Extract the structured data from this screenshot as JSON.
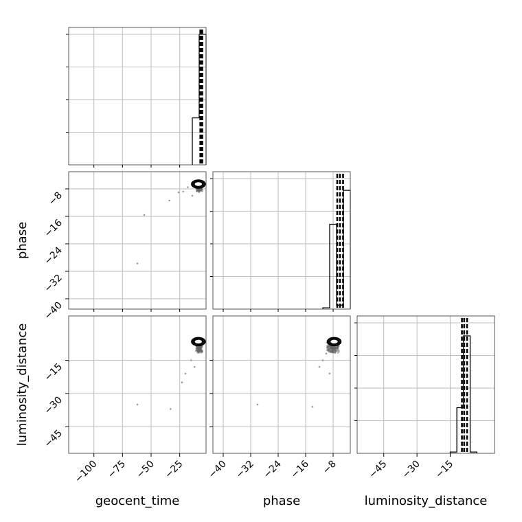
{
  "chart_data": {
    "type": "corner",
    "grid": true,
    "parameters": [
      "geocent_time",
      "phase",
      "luminosity_distance"
    ],
    "axis_labels": {
      "x": [
        "geocent_time",
        "phase",
        "luminosity_distance"
      ],
      "y": [
        "phase",
        "luminosity_distance"
      ]
    },
    "ranges": {
      "geocent_time": [
        -122,
        -2
      ],
      "phase": [
        -43,
        -3
      ],
      "luminosity_distance": [
        -57,
        5
      ]
    },
    "ticks": {
      "geocent_time": [
        -100,
        -75,
        -50,
        -25
      ],
      "phase": [
        -40,
        -32,
        -24,
        -16,
        -8
      ],
      "luminosity_distance": [
        -45,
        -30,
        -15
      ]
    },
    "tick_labels": {
      "geocent_time": [
        "−100",
        "−75",
        "−50",
        "−25"
      ],
      "phase": [
        "−40",
        "−32",
        "−24",
        "−16",
        "−8"
      ],
      "luminosity_distance": [
        "−45",
        "−30",
        "−15"
      ]
    },
    "histograms": {
      "geocent_time": {
        "bin_edges": [
          -14,
          -8,
          -2
        ],
        "values": [
          0.36,
          1.0
        ],
        "quantile_lines": [
          -7,
          -6.2,
          -5.3
        ]
      },
      "phase": {
        "bin_edges": [
          -11,
          -9,
          -7,
          -5,
          -3
        ],
        "values": [
          0.01,
          0.65,
          0.03,
          0.91
        ],
        "quantile_lines": [
          -6.8,
          -6.0,
          -5.1
        ]
      },
      "luminosity_distance": {
        "bin_edges": [
          -15,
          -12,
          -9,
          -6,
          -3
        ],
        "values": [
          0.01,
          0.35,
          0.9,
          0.01
        ],
        "quantile_lines": [
          -9.7,
          -8.7,
          -7.4
        ]
      }
    },
    "scatter_panels": [
      {
        "x": "geocent_time",
        "y": "phase",
        "core": {
          "x": [
            -11,
            -5
          ],
          "y": [
            -9,
            -6
          ]
        },
        "outliers": [
          [
            -18,
            -7.5
          ],
          [
            -22,
            -8.8
          ],
          [
            -34,
            -11.4
          ],
          [
            -56,
            -15.6
          ],
          [
            -62,
            -29.7
          ],
          [
            -14,
            -10
          ],
          [
            -26,
            -9
          ]
        ]
      },
      {
        "x": "geocent_time",
        "y": "luminosity_distance",
        "core": {
          "x": [
            -11,
            -5
          ],
          "y": [
            -12,
            -6
          ]
        },
        "outliers": [
          [
            -20,
            -21
          ],
          [
            -23,
            -25
          ],
          [
            -33,
            -37
          ],
          [
            -62,
            -35
          ],
          [
            -12,
            -18
          ],
          [
            -15,
            -15
          ]
        ]
      },
      {
        "x": "phase",
        "y": "luminosity_distance",
        "core": {
          "x": [
            -10,
            -6
          ],
          "y": [
            -12,
            -6
          ]
        },
        "outliers": [
          [
            -11,
            -15
          ],
          [
            -12,
            -18
          ],
          [
            -9,
            -21
          ],
          [
            -30,
            -35
          ],
          [
            -14,
            -36
          ],
          [
            -10,
            -12
          ]
        ]
      }
    ]
  }
}
